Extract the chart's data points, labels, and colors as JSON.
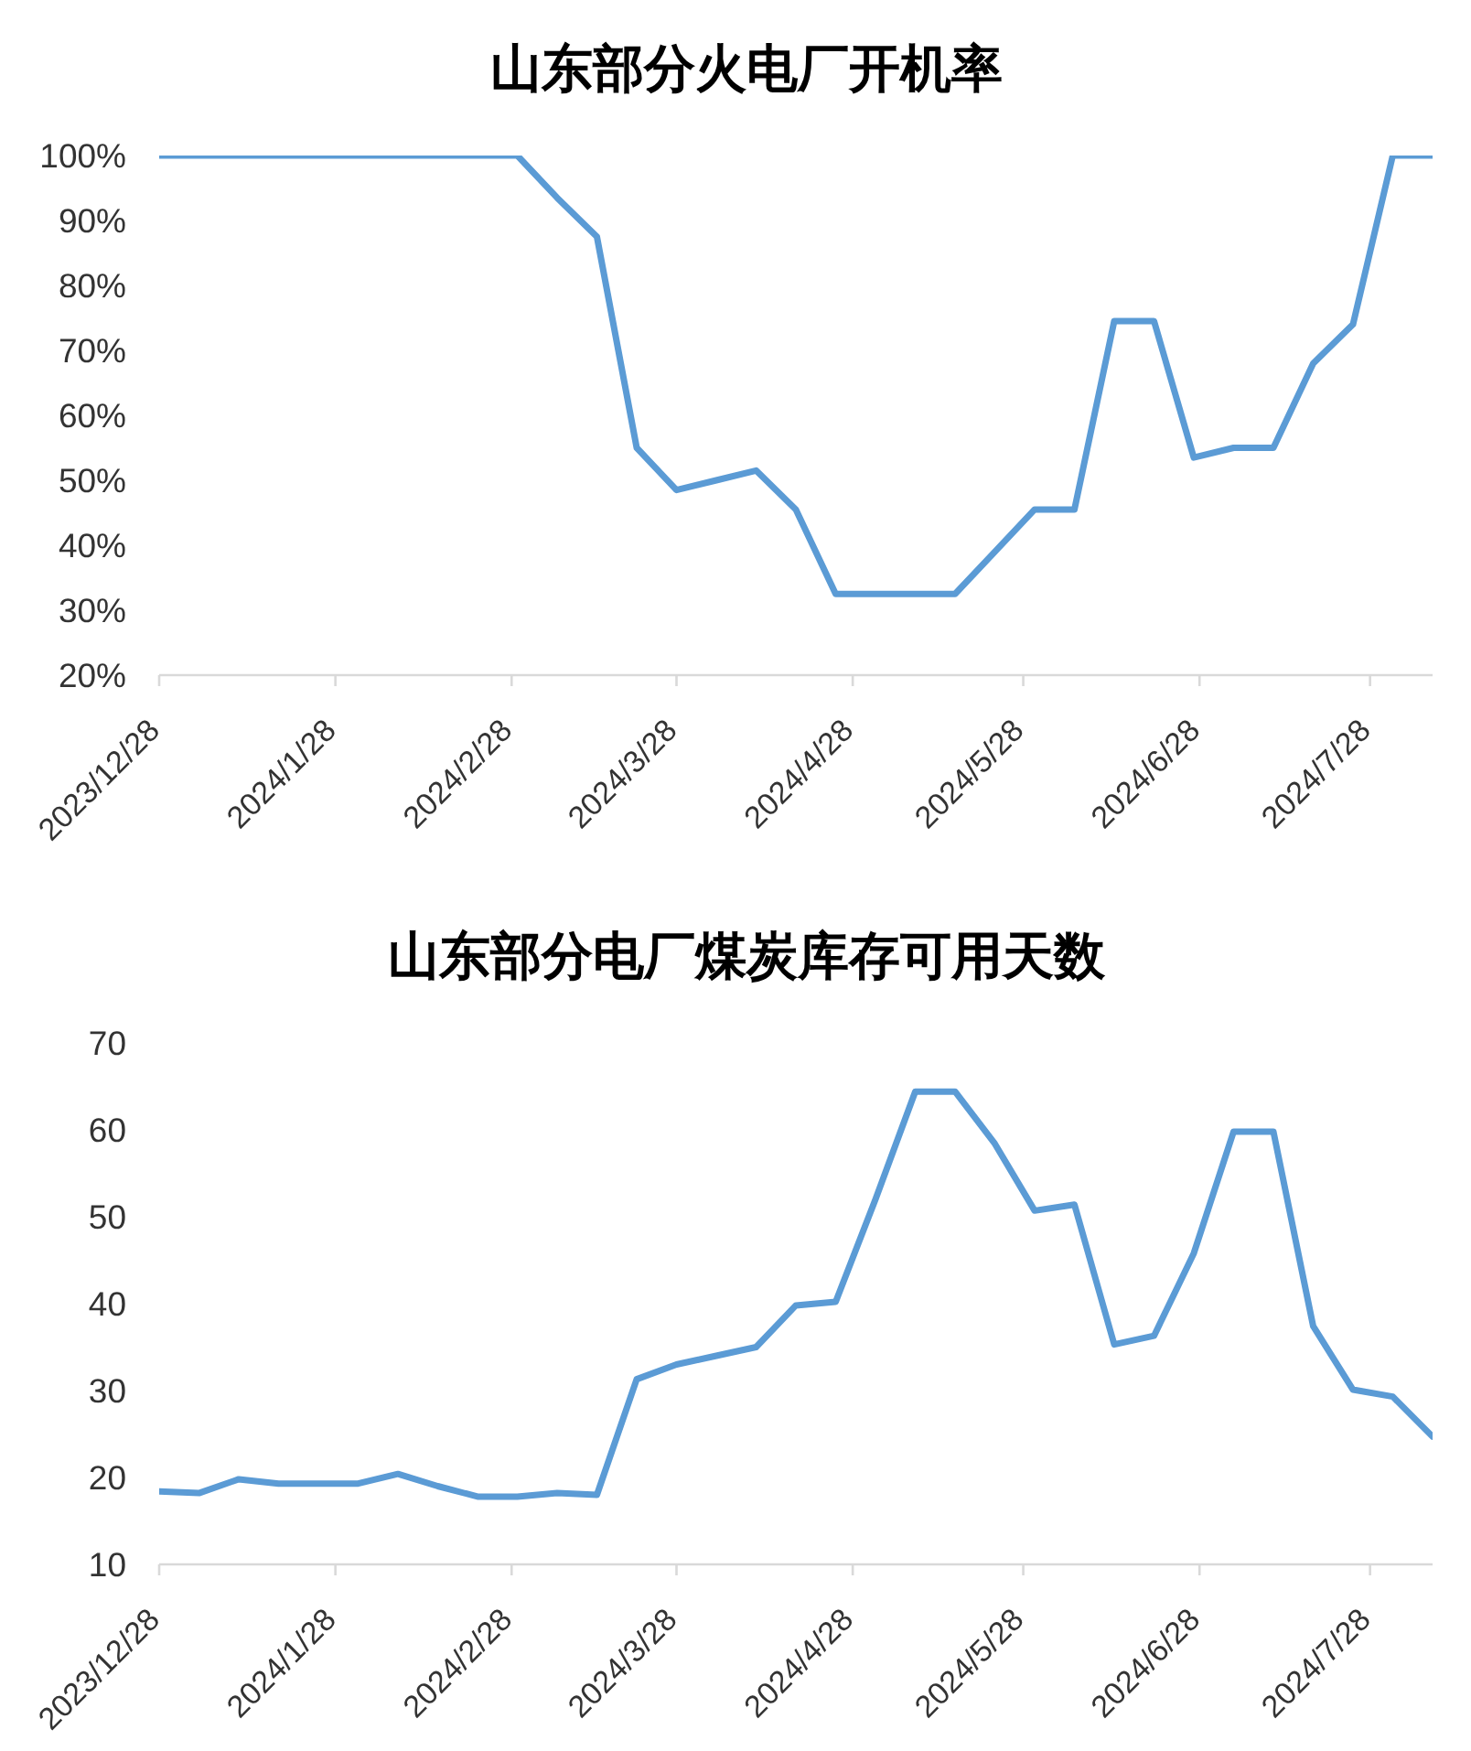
{
  "chart_data": [
    {
      "type": "line",
      "title": "山东部分火电厂开机率",
      "x": [
        "2023-12-28",
        "2024-01-04",
        "2024-01-11",
        "2024-01-18",
        "2024-01-25",
        "2024-02-01",
        "2024-02-08",
        "2024-02-15",
        "2024-02-22",
        "2024-02-29",
        "2024-03-07",
        "2024-03-14",
        "2024-03-21",
        "2024-03-28",
        "2024-04-04",
        "2024-04-11",
        "2024-04-18",
        "2024-04-25",
        "2024-05-02",
        "2024-05-09",
        "2024-05-16",
        "2024-05-23",
        "2024-05-30",
        "2024-06-06",
        "2024-06-13",
        "2024-06-20",
        "2024-06-27",
        "2024-07-04",
        "2024-07-11",
        "2024-07-18",
        "2024-07-25",
        "2024-08-01",
        "2024-08-08"
      ],
      "series": [
        {
          "color": "#5b9bd5",
          "values": [
            100,
            100,
            100,
            100,
            100,
            100,
            100,
            100,
            100,
            100,
            93.5,
            87.5,
            55,
            48.5,
            50,
            51.5,
            45.5,
            32.5,
            32.5,
            32.5,
            32.5,
            39,
            45.5,
            45.5,
            74.5,
            74.5,
            53.5,
            55,
            55,
            68,
            74,
            100,
            100
          ]
        }
      ],
      "xlim": [
        "2023-12-28",
        "2024-08-08"
      ],
      "xticks": [
        {
          "value": "2023-12-28",
          "label": "2023/12/28"
        },
        {
          "value": "2024-01-28",
          "label": "2024/1/28"
        },
        {
          "value": "2024-02-28",
          "label": "2024/2/28"
        },
        {
          "value": "2024-03-28",
          "label": "2024/3/28"
        },
        {
          "value": "2024-04-28",
          "label": "2024/4/28"
        },
        {
          "value": "2024-05-28",
          "label": "2024/5/28"
        },
        {
          "value": "2024-06-28",
          "label": "2024/6/28"
        },
        {
          "value": "2024-07-28",
          "label": "2024/7/28"
        }
      ],
      "ylim": [
        20,
        100
      ],
      "yticks": [
        {
          "value": 20,
          "label": "20%"
        },
        {
          "value": 30,
          "label": "30%"
        },
        {
          "value": 40,
          "label": "40%"
        },
        {
          "value": 50,
          "label": "50%"
        },
        {
          "value": 60,
          "label": "60%"
        },
        {
          "value": 70,
          "label": "70%"
        },
        {
          "value": 80,
          "label": "80%"
        },
        {
          "value": 90,
          "label": "90%"
        },
        {
          "value": 100,
          "label": "100%"
        }
      ],
      "line_style": "solid"
    },
    {
      "type": "line",
      "title": "山东部分电厂煤炭库存可用天数",
      "x": [
        "2023-12-28",
        "2024-01-04",
        "2024-01-11",
        "2024-01-18",
        "2024-01-25",
        "2024-02-01",
        "2024-02-08",
        "2024-02-15",
        "2024-02-22",
        "2024-02-29",
        "2024-03-07",
        "2024-03-14",
        "2024-03-21",
        "2024-03-28",
        "2024-04-04",
        "2024-04-11",
        "2024-04-18",
        "2024-04-25",
        "2024-05-02",
        "2024-05-09",
        "2024-05-16",
        "2024-05-23",
        "2024-05-30",
        "2024-06-06",
        "2024-06-13",
        "2024-06-20",
        "2024-06-27",
        "2024-07-04",
        "2024-07-11",
        "2024-07-18",
        "2024-07-25",
        "2024-08-01",
        "2024-08-08"
      ],
      "series": [
        {
          "color": "#5b9bd5",
          "values": [
            18.4,
            18.2,
            19.8,
            19.3,
            19.3,
            19.3,
            20.4,
            19,
            17.8,
            17.8,
            18.2,
            18,
            31.3,
            33,
            34,
            35,
            39.8,
            40.2,
            52,
            64.4,
            64.4,
            58.4,
            50.7,
            51.4,
            35.3,
            36.3,
            45.8,
            59.8,
            59.8,
            37.4,
            30.1,
            29.3,
            24.7
          ]
        }
      ],
      "xlim": [
        "2023-12-28",
        "2024-08-08"
      ],
      "xticks": [
        {
          "value": "2023-12-28",
          "label": "2023/12/28"
        },
        {
          "value": "2024-01-28",
          "label": "2024/1/28"
        },
        {
          "value": "2024-02-28",
          "label": "2024/2/28"
        },
        {
          "value": "2024-03-28",
          "label": "2024/3/28"
        },
        {
          "value": "2024-04-28",
          "label": "2024/4/28"
        },
        {
          "value": "2024-05-28",
          "label": "2024/5/28"
        },
        {
          "value": "2024-06-28",
          "label": "2024/6/28"
        },
        {
          "value": "2024-07-28",
          "label": "2024/7/28"
        }
      ],
      "ylim": [
        10,
        70
      ],
      "yticks": [
        10,
        20,
        30,
        40,
        50,
        60,
        70
      ],
      "line_style": "solid"
    }
  ]
}
